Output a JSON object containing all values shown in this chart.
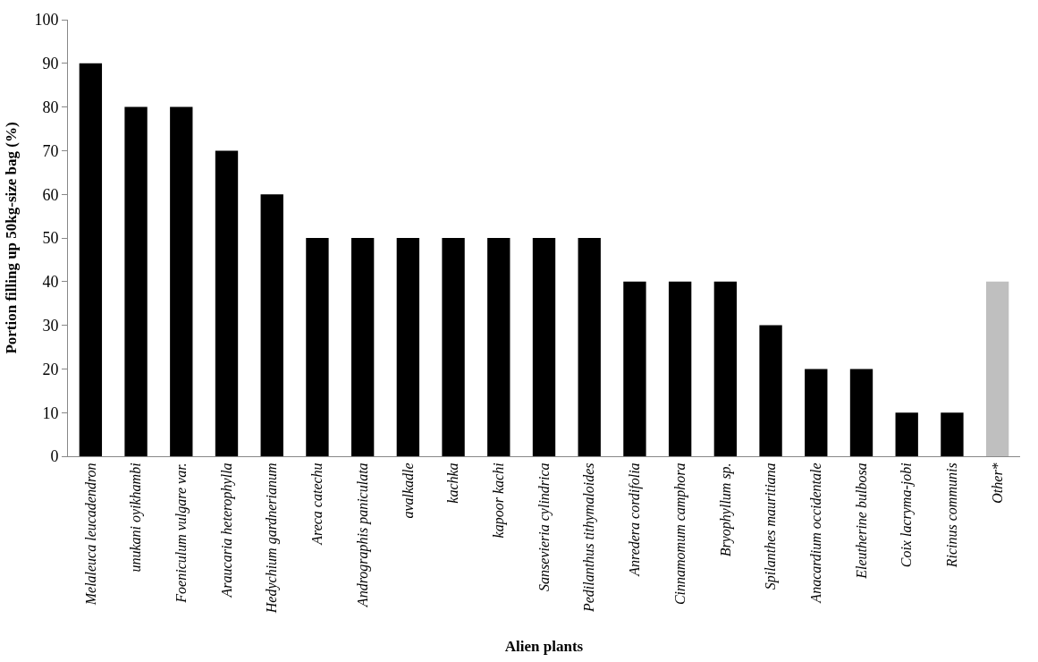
{
  "chart_data": {
    "type": "bar",
    "xlabel": "Alien plants",
    "ylabel": "Portion filling up 50kg-size bag (%)",
    "categories": [
      "Melaleuca leucadendron",
      "unukani oyikhambi",
      "Foeniculum vulgare var.",
      "Araucaria heterophylla",
      "Hedychium gardnerianum",
      "Areca catechu",
      "Andrographis paniculata",
      "avalkadle",
      "kachka",
      "kapoor kachi",
      "Sansevieria cylindrica",
      "Pedilanthus tithymaloides",
      "Anredera cordifolia",
      "Cinnamomum camphora",
      "Bryophyllum sp.",
      "Spilanthes mauritiana",
      "Anacardium occidentale",
      "Eleutherine bulbosa",
      "Coix lacryma-jobi",
      "Ricinus communis",
      "Other*"
    ],
    "values": [
      90,
      80,
      80,
      70,
      60,
      50,
      50,
      50,
      50,
      50,
      50,
      50,
      40,
      40,
      40,
      30,
      20,
      20,
      10,
      10,
      40
    ],
    "colors": [
      "#000000",
      "#000000",
      "#000000",
      "#000000",
      "#000000",
      "#000000",
      "#000000",
      "#000000",
      "#000000",
      "#000000",
      "#000000",
      "#000000",
      "#000000",
      "#000000",
      "#000000",
      "#000000",
      "#000000",
      "#000000",
      "#000000",
      "#000000",
      "#bfbfbf"
    ],
    "ylim": [
      0,
      100
    ],
    "yticks": [
      0,
      10,
      20,
      30,
      40,
      50,
      60,
      70,
      80,
      90,
      100
    ]
  }
}
